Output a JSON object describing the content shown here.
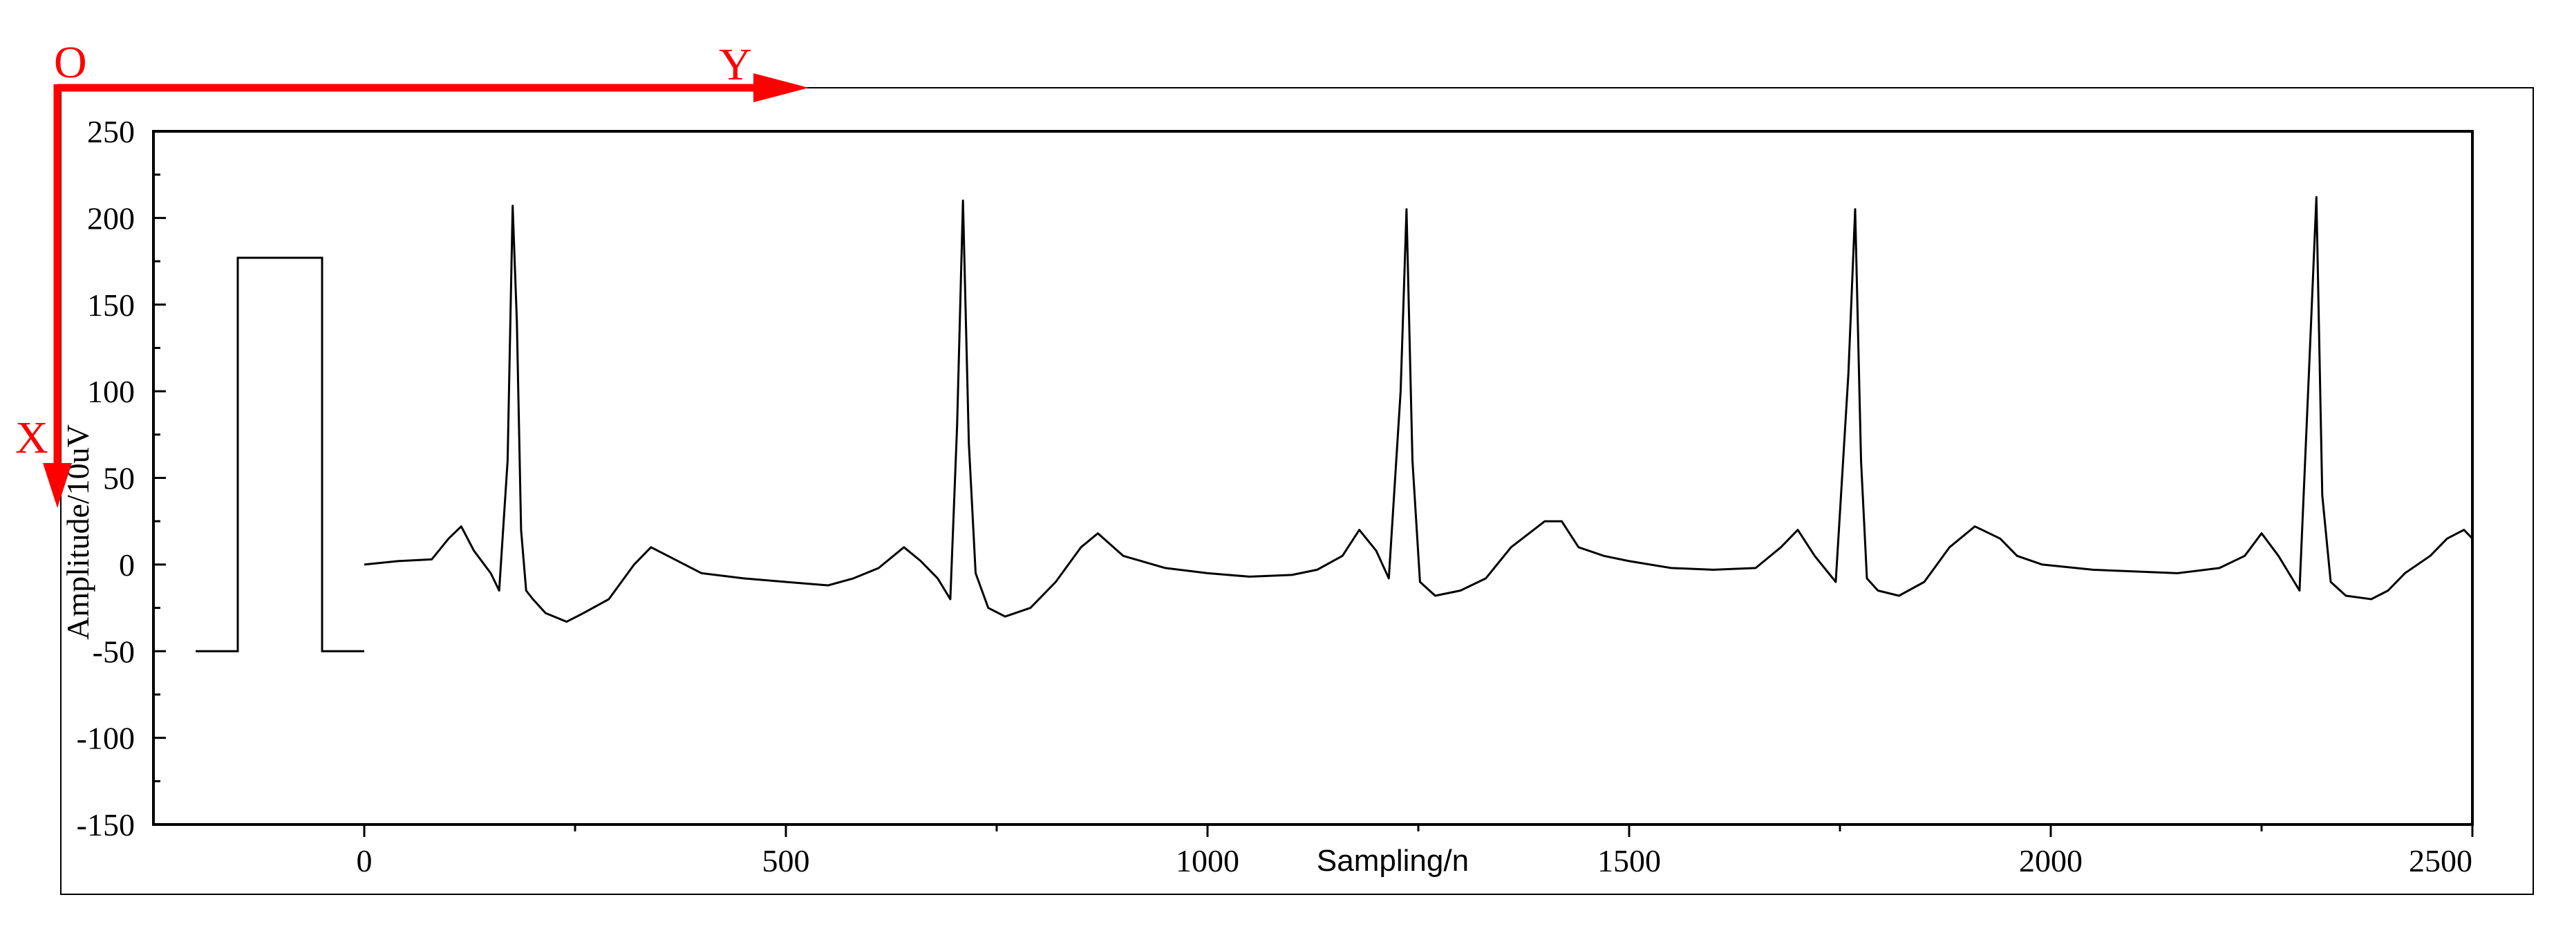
{
  "chart_data": {
    "type": "line",
    "title": "",
    "xlabel": "Sampling/n",
    "ylabel": "Amplitude/10uV",
    "xlim": [
      -250,
      2500
    ],
    "ylim": [
      -150,
      250
    ],
    "x_ticks": [
      0,
      500,
      1000,
      1500,
      2000,
      2500
    ],
    "y_ticks": [
      -150,
      -100,
      -50,
      0,
      50,
      100,
      150,
      200,
      250
    ],
    "grid": false,
    "legend": "none",
    "calibration_pulse": {
      "x": [
        -200,
        -150,
        -150,
        -50,
        -50,
        0
      ],
      "y": [
        -50,
        -50,
        177,
        177,
        -50,
        -50
      ]
    },
    "series": [
      {
        "color": "#000000",
        "x": [
          0,
          40,
          80,
          100,
          115,
          130,
          150,
          160,
          170,
          176,
          181,
          186,
          192,
          200,
          215,
          240,
          260,
          290,
          320,
          340,
          360,
          400,
          450,
          500,
          550,
          580,
          610,
          640,
          660,
          680,
          695,
          703,
          710,
          717,
          725,
          740,
          760,
          790,
          820,
          850,
          870,
          900,
          950,
          1000,
          1050,
          1100,
          1130,
          1160,
          1180,
          1200,
          1215,
          1229,
          1236,
          1243,
          1252,
          1270,
          1300,
          1330,
          1360,
          1400,
          1420,
          1440,
          1470,
          1500,
          1550,
          1600,
          1650,
          1680,
          1700,
          1720,
          1745,
          1760,
          1768,
          1775,
          1782,
          1795,
          1820,
          1850,
          1880,
          1910,
          1940,
          1960,
          1990,
          2050,
          2100,
          2150,
          2200,
          2230,
          2250,
          2270,
          2295,
          2307,
          2315,
          2322,
          2332,
          2350,
          2380,
          2400,
          2420,
          2450,
          2470,
          2490,
          2500
        ],
        "y": [
          0,
          2,
          3,
          15,
          22,
          8,
          -5,
          -15,
          60,
          207,
          140,
          20,
          -15,
          -20,
          -28,
          -33,
          -28,
          -20,
          0,
          10,
          5,
          -5,
          -8,
          -10,
          -12,
          -8,
          -2,
          10,
          2,
          -8,
          -20,
          80,
          210,
          70,
          -5,
          -25,
          -30,
          -25,
          -10,
          10,
          18,
          5,
          -2,
          -5,
          -7,
          -6,
          -3,
          5,
          20,
          8,
          -8,
          100,
          205,
          60,
          -10,
          -18,
          -15,
          -8,
          10,
          25,
          25,
          10,
          5,
          2,
          -2,
          -3,
          -2,
          10,
          20,
          5,
          -10,
          110,
          205,
          60,
          -8,
          -15,
          -18,
          -10,
          10,
          22,
          15,
          5,
          0,
          -3,
          -4,
          -5,
          -2,
          5,
          18,
          5,
          -15,
          120,
          212,
          40,
          -10,
          -18,
          -20,
          -15,
          -5,
          5,
          15,
          20,
          15
        ]
      }
    ],
    "annotations": {
      "origin": "O",
      "horizontal_axis": "Y",
      "vertical_axis": "X",
      "arrow_color": "#ff0000"
    }
  }
}
